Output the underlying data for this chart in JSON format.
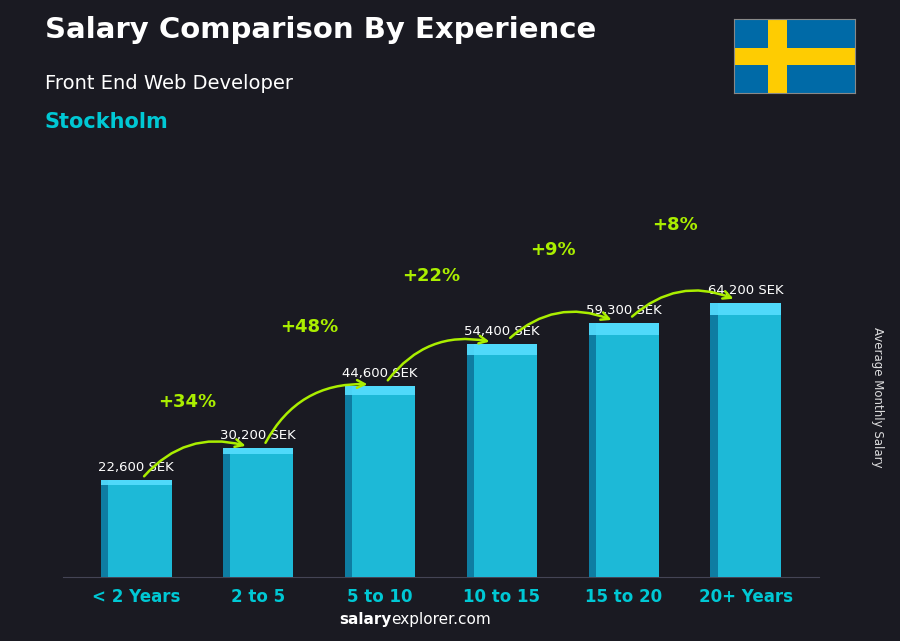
{
  "title": "Salary Comparison By Experience",
  "subtitle": "Front End Web Developer",
  "city": "Stockholm",
  "ylabel": "Average Monthly Salary",
  "footer_bold": "salary",
  "footer_regular": "explorer.com",
  "categories": [
    "< 2 Years",
    "2 to 5",
    "5 to 10",
    "10 to 15",
    "15 to 20",
    "20+ Years"
  ],
  "values": [
    22600,
    30200,
    44600,
    54400,
    59300,
    64200
  ],
  "labels": [
    "22,600 SEK",
    "30,200 SEK",
    "44,600 SEK",
    "54,400 SEK",
    "59,300 SEK",
    "64,200 SEK"
  ],
  "pct_labels": [
    "+34%",
    "+48%",
    "+22%",
    "+9%",
    "+8%"
  ],
  "bar_main_color": "#1EC8E8",
  "bar_left_color": "#0E7AA0",
  "bar_top_color": "#55DDFF",
  "bg_color": "#1a1a22",
  "title_color": "#FFFFFF",
  "subtitle_color": "#FFFFFF",
  "city_color": "#00C8D4",
  "label_color": "#FFFFFF",
  "pct_color": "#AAEE00",
  "arrow_color": "#AAEE00",
  "xticklabel_color": "#00C8D4",
  "footer_bold_color": "#FFFFFF",
  "footer_regular_color": "#FFFFFF",
  "flag_blue": "#006AA7",
  "flag_yellow": "#FECC02",
  "ylim": [
    0,
    78000
  ],
  "bar_width": 0.58
}
